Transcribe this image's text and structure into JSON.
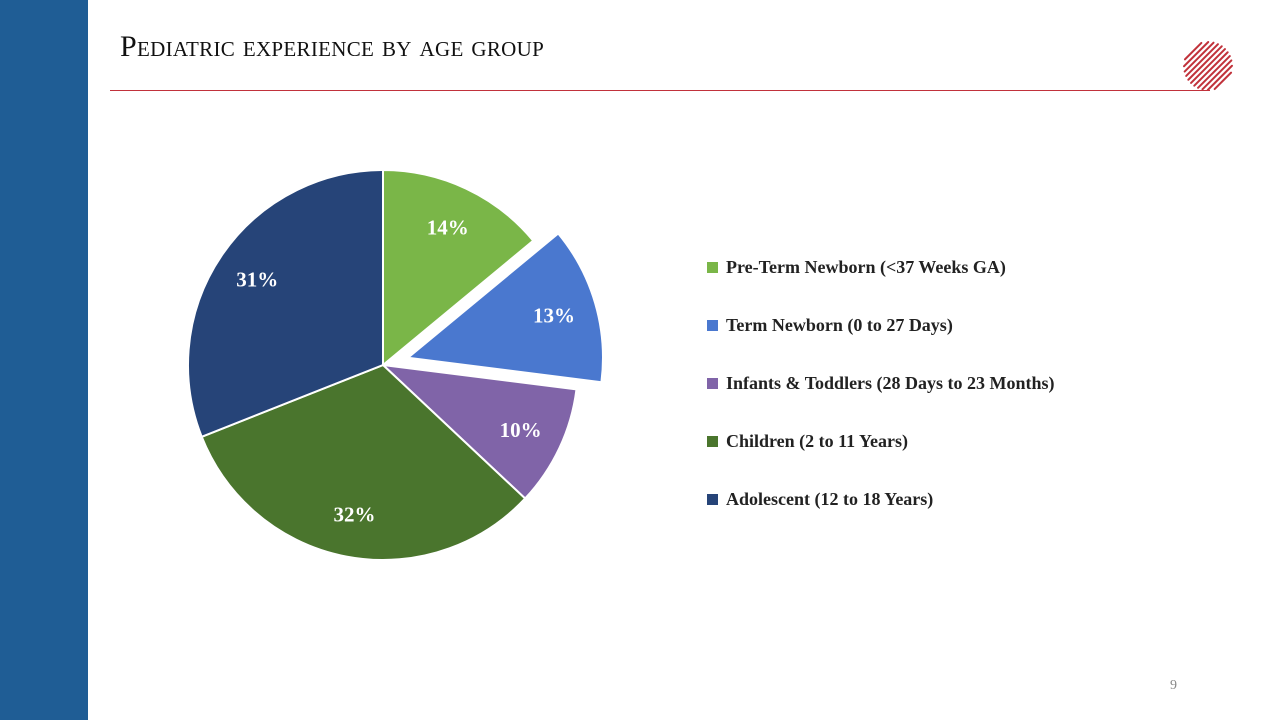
{
  "slide": {
    "title": "Pediatric experience by age group",
    "page_number": "9"
  },
  "colors": {
    "side_bar": "#1f5d95",
    "title_rule": "#c1323b",
    "logo": "#c1323b"
  },
  "icons": {
    "logo": "scribble-sphere-logo-icon"
  },
  "chart_data": {
    "type": "pie",
    "start_angle_deg": 0,
    "direction": "clockwise",
    "exploded": [
      "Term Newborn (0 to 27 Days)"
    ],
    "legend_position": "right",
    "slices": [
      {
        "label": "Pre-Term Newborn (<37 Weeks GA)",
        "value": 14,
        "display": "14%",
        "color": "#7ab648"
      },
      {
        "label": "Term Newborn (0 to 27 Days)",
        "value": 13,
        "display": "13%",
        "color": "#4a78cf"
      },
      {
        "label": "Infants & Toddlers (28 Days to 23 Months)",
        "value": 10,
        "display": "10%",
        "color": "#8064a8"
      },
      {
        "label": "Children (2 to 11 Years)",
        "value": 32,
        "display": "32%",
        "color": "#4a752d"
      },
      {
        "label": "Adolescent (12 to 18 Years)",
        "value": 31,
        "display": "31%",
        "color": "#264478"
      }
    ]
  }
}
